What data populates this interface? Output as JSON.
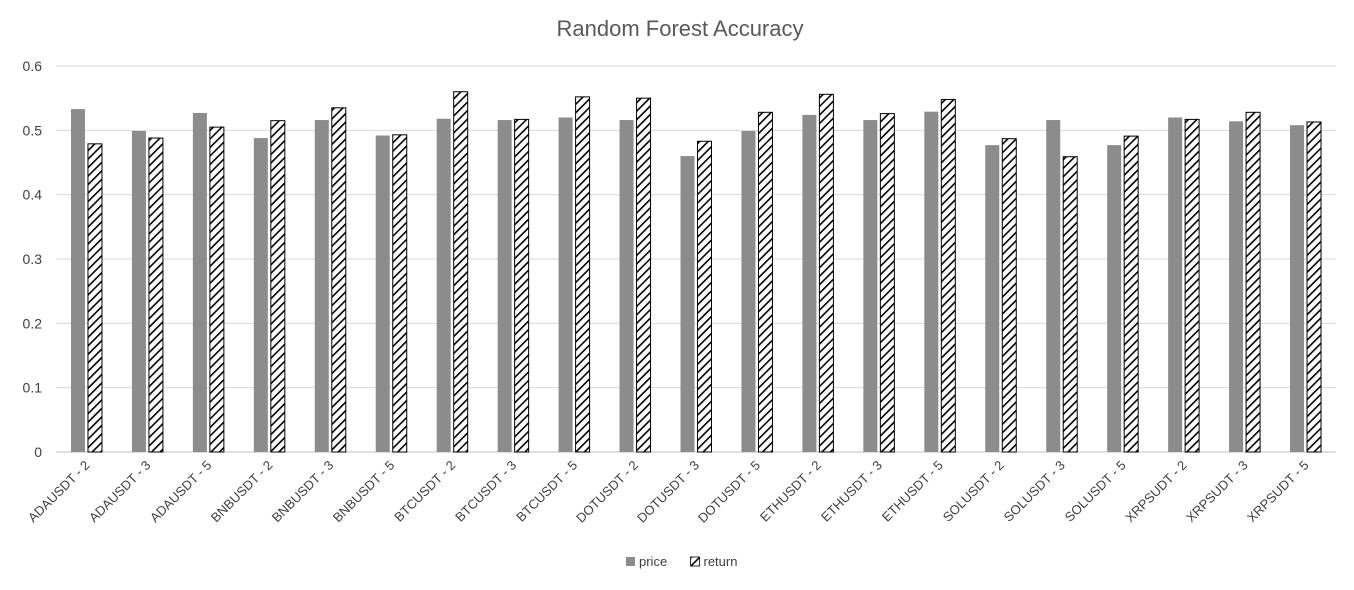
{
  "chart_data": {
    "type": "bar",
    "title": "Random Forest Accuracy",
    "xlabel": "",
    "ylabel": "",
    "ylim": [
      0,
      0.6
    ],
    "yticks": [
      0,
      0.1,
      0.2,
      0.3,
      0.4,
      0.5,
      0.6
    ],
    "ytick_labels": [
      "0",
      "0.1",
      "0.2",
      "0.3",
      "0.4",
      "0.5",
      "0.6"
    ],
    "grid": true,
    "legend_position": "bottom",
    "categories": [
      "ADAUSDT - 2",
      "ADAUSDT - 3",
      "ADAUSDT - 5",
      "BNBUSDT - 2",
      "BNBUSDT - 3",
      "BNBUSDT - 5",
      "BTCUSDT - 2",
      "BTCUSDT - 3",
      "BTCUSDT - 5",
      "DOTUSDT - 2",
      "DOTUSDT - 3",
      "DOTUSDT - 5",
      "ETHUSDT - 2",
      "ETHUSDT - 3",
      "ETHUSDT - 5",
      "SOLUSDT - 2",
      "SOLUSDT - 3",
      "SOLUSDT - 5",
      "XRPSUDT - 2",
      "XRPSUDT - 3",
      "XRPSUDT - 5"
    ],
    "series": [
      {
        "name": "price",
        "pattern": "solid",
        "color": "#8c8c8c",
        "values": [
          0.533,
          0.499,
          0.527,
          0.488,
          0.516,
          0.492,
          0.518,
          0.516,
          0.52,
          0.516,
          0.46,
          0.499,
          0.524,
          0.516,
          0.529,
          0.477,
          0.516,
          0.477,
          0.52,
          0.514,
          0.508
        ]
      },
      {
        "name": "return",
        "pattern": "hatched",
        "color": "#000000",
        "values": [
          0.479,
          0.488,
          0.505,
          0.515,
          0.535,
          0.493,
          0.56,
          0.517,
          0.552,
          0.55,
          0.483,
          0.528,
          0.556,
          0.526,
          0.548,
          0.487,
          0.459,
          0.491,
          0.517,
          0.528,
          0.513
        ]
      }
    ]
  }
}
